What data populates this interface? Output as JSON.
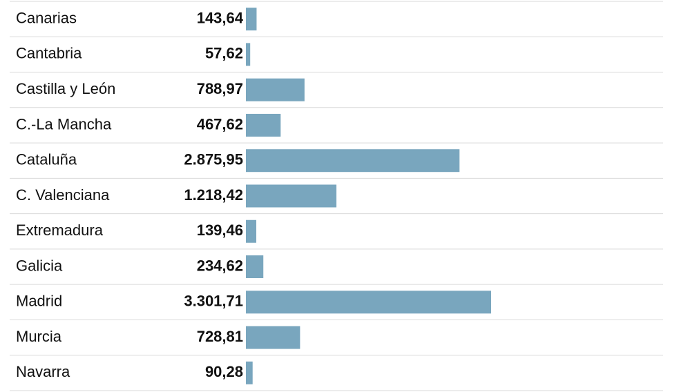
{
  "chart_data": {
    "type": "bar",
    "orientation": "horizontal",
    "color": "#79a6be",
    "categories": [
      "Canarias",
      "Cantabria",
      "Castilla y León",
      "C.-La Mancha",
      "Cataluña",
      "C. Valenciana",
      "Extremadura",
      "Galicia",
      "Madrid",
      "Murcia",
      "Navarra"
    ],
    "values": [
      143.64,
      57.62,
      788.97,
      467.62,
      2875.95,
      1218.42,
      139.46,
      234.62,
      3301.71,
      728.81,
      90.28
    ],
    "value_labels": [
      "143,64",
      "57,62",
      "788,97",
      "467,62",
      "2.875,95",
      "1.218,42",
      "139,46",
      "234,62",
      "3.301,71",
      "728,81",
      "90,28"
    ]
  }
}
